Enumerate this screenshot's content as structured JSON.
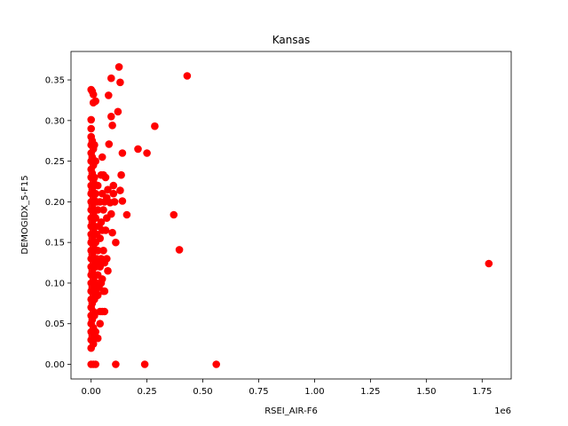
{
  "chart_data": {
    "type": "scatter",
    "title": "Kansas",
    "xlabel": "RSEI_AIR-F6",
    "ylabel": "DEMOGIDX_5-F15",
    "x_offset_label": "1e6",
    "xlim": [
      -0.09,
      1.88
    ],
    "ylim": [
      -0.018,
      0.385
    ],
    "x_ticks": [
      0.0,
      0.25,
      0.5,
      0.75,
      1.0,
      1.25,
      1.5,
      1.75
    ],
    "x_tick_labels": [
      "0.00",
      "0.25",
      "0.50",
      "0.75",
      "1.00",
      "1.25",
      "1.50",
      "1.75"
    ],
    "y_ticks": [
      0.0,
      0.05,
      0.1,
      0.15,
      0.2,
      0.25,
      0.3,
      0.35
    ],
    "y_tick_labels": [
      "0.00",
      "0.05",
      "0.10",
      "0.15",
      "0.20",
      "0.25",
      "0.30",
      "0.35"
    ],
    "grid": false,
    "marker_color": "#ff0000",
    "points": [
      [
        0.0,
        0.338
      ],
      [
        0.005,
        0.336
      ],
      [
        0.01,
        0.332
      ],
      [
        0.0,
        0.301
      ],
      [
        0.01,
        0.322
      ],
      [
        0.02,
        0.324
      ],
      [
        0.0,
        0.29
      ],
      [
        0.0,
        0.28
      ],
      [
        0.005,
        0.275
      ],
      [
        0.0,
        0.27
      ],
      [
        0.01,
        0.265
      ],
      [
        0.0,
        0.26
      ],
      [
        0.005,
        0.255
      ],
      [
        0.0,
        0.25
      ],
      [
        0.01,
        0.245
      ],
      [
        0.0,
        0.24
      ],
      [
        0.005,
        0.235
      ],
      [
        0.0,
        0.23
      ],
      [
        0.01,
        0.225
      ],
      [
        0.0,
        0.22
      ],
      [
        0.005,
        0.215
      ],
      [
        0.0,
        0.21
      ],
      [
        0.01,
        0.205
      ],
      [
        0.0,
        0.2
      ],
      [
        0.005,
        0.195
      ],
      [
        0.0,
        0.19
      ],
      [
        0.01,
        0.185
      ],
      [
        0.0,
        0.18
      ],
      [
        0.005,
        0.175
      ],
      [
        0.0,
        0.17
      ],
      [
        0.01,
        0.165
      ],
      [
        0.0,
        0.16
      ],
      [
        0.005,
        0.155
      ],
      [
        0.0,
        0.15
      ],
      [
        0.01,
        0.145
      ],
      [
        0.0,
        0.14
      ],
      [
        0.005,
        0.135
      ],
      [
        0.0,
        0.13
      ],
      [
        0.01,
        0.125
      ],
      [
        0.0,
        0.12
      ],
      [
        0.005,
        0.115
      ],
      [
        0.0,
        0.11
      ],
      [
        0.01,
        0.105
      ],
      [
        0.0,
        0.1
      ],
      [
        0.005,
        0.095
      ],
      [
        0.0,
        0.09
      ],
      [
        0.01,
        0.085
      ],
      [
        0.0,
        0.08
      ],
      [
        0.005,
        0.075
      ],
      [
        0.0,
        0.07
      ],
      [
        0.01,
        0.065
      ],
      [
        0.0,
        0.06
      ],
      [
        0.005,
        0.055
      ],
      [
        0.0,
        0.05
      ],
      [
        0.01,
        0.045
      ],
      [
        0.0,
        0.04
      ],
      [
        0.005,
        0.035
      ],
      [
        0.0,
        0.03
      ],
      [
        0.01,
        0.025
      ],
      [
        0.0,
        0.02
      ],
      [
        0.015,
        0.27
      ],
      [
        0.015,
        0.23
      ],
      [
        0.015,
        0.2
      ],
      [
        0.015,
        0.17
      ],
      [
        0.015,
        0.14
      ],
      [
        0.015,
        0.11
      ],
      [
        0.015,
        0.08
      ],
      [
        0.015,
        0.06
      ],
      [
        0.02,
        0.25
      ],
      [
        0.02,
        0.21
      ],
      [
        0.02,
        0.18
      ],
      [
        0.02,
        0.15
      ],
      [
        0.02,
        0.12
      ],
      [
        0.02,
        0.09
      ],
      [
        0.025,
        0.2
      ],
      [
        0.025,
        0.16
      ],
      [
        0.025,
        0.13
      ],
      [
        0.025,
        0.1
      ],
      [
        0.03,
        0.22
      ],
      [
        0.03,
        0.19
      ],
      [
        0.03,
        0.14
      ],
      [
        0.03,
        0.11
      ],
      [
        0.03,
        0.085
      ],
      [
        0.035,
        0.17
      ],
      [
        0.035,
        0.125
      ],
      [
        0.035,
        0.095
      ],
      [
        0.04,
        0.2
      ],
      [
        0.04,
        0.155
      ],
      [
        0.04,
        0.12
      ],
      [
        0.04,
        0.065
      ],
      [
        0.045,
        0.233
      ],
      [
        0.045,
        0.175
      ],
      [
        0.045,
        0.13
      ],
      [
        0.045,
        0.1
      ],
      [
        0.05,
        0.255
      ],
      [
        0.05,
        0.21
      ],
      [
        0.05,
        0.165
      ],
      [
        0.05,
        0.105
      ],
      [
        0.055,
        0.233
      ],
      [
        0.055,
        0.19
      ],
      [
        0.055,
        0.14
      ],
      [
        0.055,
        0.09
      ],
      [
        0.06,
        0.2
      ],
      [
        0.06,
        0.125
      ],
      [
        0.06,
        0.065
      ],
      [
        0.065,
        0.23
      ],
      [
        0.065,
        0.165
      ],
      [
        0.07,
        0.205
      ],
      [
        0.07,
        0.18
      ],
      [
        0.075,
        0.215
      ],
      [
        0.075,
        0.115
      ],
      [
        0.078,
        0.331
      ],
      [
        0.08,
        0.271
      ],
      [
        0.085,
        0.199
      ],
      [
        0.09,
        0.352
      ],
      [
        0.09,
        0.305
      ],
      [
        0.09,
        0.185
      ],
      [
        0.095,
        0.162
      ],
      [
        0.095,
        0.294
      ],
      [
        0.1,
        0.22
      ],
      [
        0.1,
        0.21
      ],
      [
        0.105,
        0.2
      ],
      [
        0.11,
        0.15
      ],
      [
        0.12,
        0.311
      ],
      [
        0.125,
        0.366
      ],
      [
        0.13,
        0.347
      ],
      [
        0.13,
        0.214
      ],
      [
        0.135,
        0.233
      ],
      [
        0.14,
        0.201
      ],
      [
        0.14,
        0.26
      ],
      [
        0.16,
        0.184
      ],
      [
        0.21,
        0.265
      ],
      [
        0.25,
        0.26
      ],
      [
        0.285,
        0.293
      ],
      [
        0.37,
        0.184
      ],
      [
        0.395,
        0.141
      ],
      [
        0.43,
        0.355
      ],
      [
        1.78,
        0.124
      ],
      [
        0.0,
        0.0
      ],
      [
        0.01,
        0.0
      ],
      [
        0.02,
        0.0
      ],
      [
        0.11,
        0.0
      ],
      [
        0.24,
        0.0
      ],
      [
        0.56,
        0.0
      ],
      [
        0.03,
        0.032
      ],
      [
        0.05,
        0.065
      ],
      [
        0.02,
        0.04
      ],
      [
        0.04,
        0.05
      ],
      [
        0.06,
        0.09
      ],
      [
        0.07,
        0.13
      ]
    ]
  }
}
